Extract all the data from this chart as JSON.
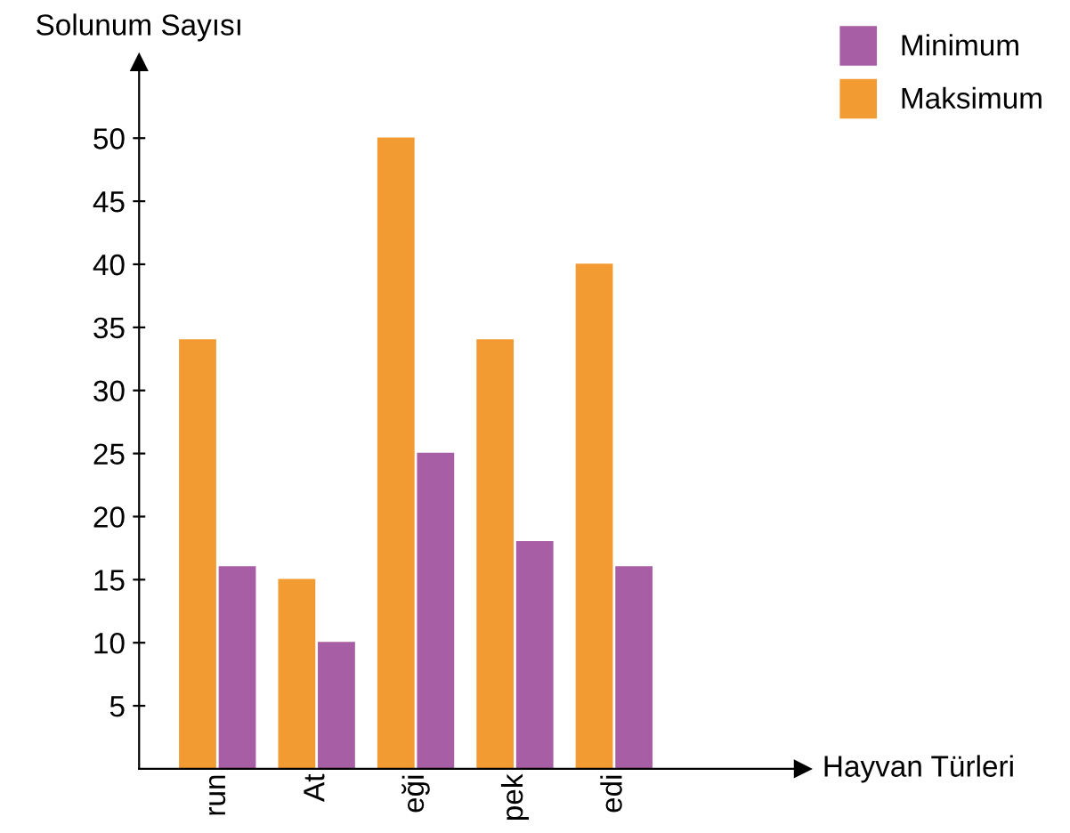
{
  "chart_data": {
    "type": "bar",
    "annotations": [
      "Hayvan Türleri"
    ],
    "ylabel": "Solunum Sayısı",
    "categories": [
      "run",
      "At",
      "eği",
      "pek",
      "edi"
    ],
    "series": [
      {
        "name": "Maksimum",
        "color": "#f29b32",
        "values": [
          34,
          15,
          50,
          34,
          40
        ]
      },
      {
        "name": "Minimum",
        "color": "#a85ea5",
        "values": [
          16,
          10,
          25,
          18,
          16
        ]
      }
    ],
    "ylim": [
      0,
      56
    ],
    "yticks": [
      5,
      10,
      15,
      20,
      25,
      30,
      35,
      40,
      45,
      50
    ],
    "grid": false,
    "legend": "top right"
  }
}
